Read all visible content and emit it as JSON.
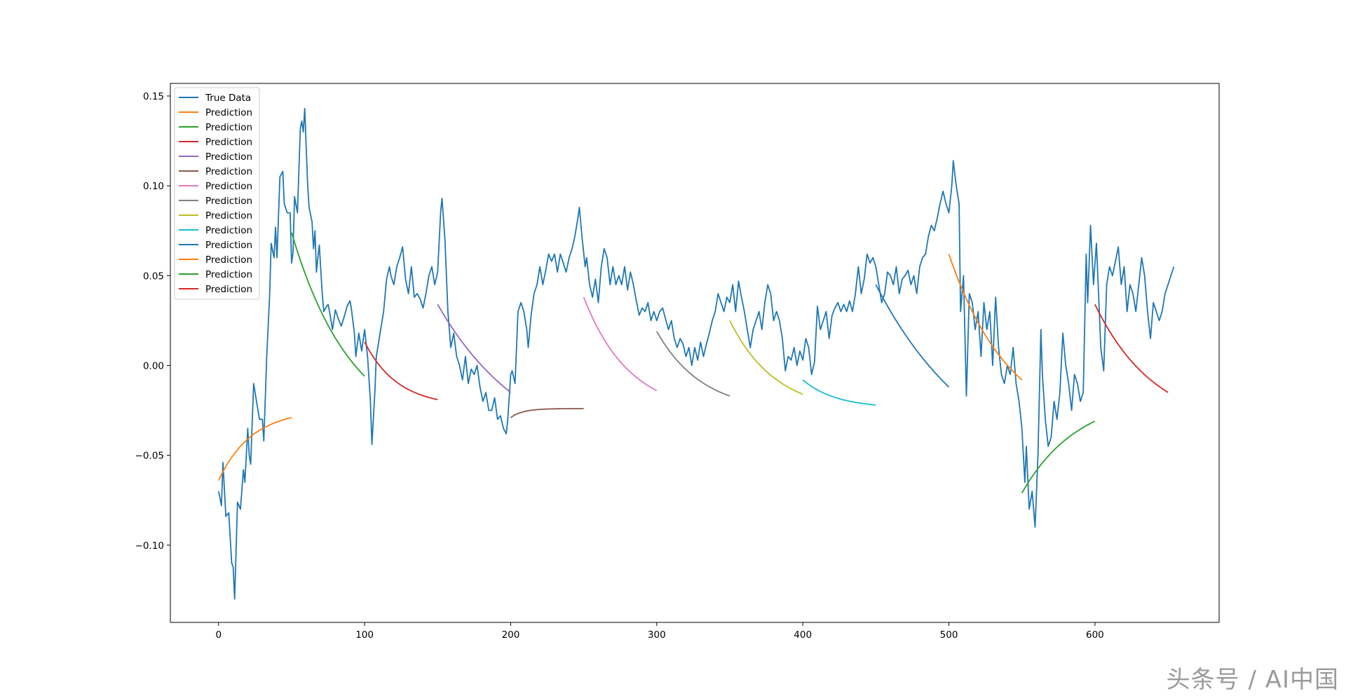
{
  "chart_data": {
    "type": "line",
    "xlim": [
      -33,
      685
    ],
    "ylim": [
      -0.143,
      0.157
    ],
    "x_ticks": [
      0,
      100,
      200,
      300,
      400,
      500,
      600
    ],
    "y_ticks": [
      -0.1,
      -0.05,
      0.0,
      0.05,
      0.1,
      0.15
    ],
    "y_tick_labels": [
      "−0.10",
      "−0.05",
      "0.00",
      "0.05",
      "0.10",
      "0.15"
    ],
    "legend_position": "upper-left",
    "grid": false,
    "true_data_anchors": [
      [
        0,
        -0.07
      ],
      [
        2,
        -0.078
      ],
      [
        3,
        -0.054
      ],
      [
        5,
        -0.084
      ],
      [
        7,
        -0.082
      ],
      [
        9,
        -0.11
      ],
      [
        10,
        -0.112
      ],
      [
        11,
        -0.13
      ],
      [
        13,
        -0.076
      ],
      [
        15,
        -0.08
      ],
      [
        17,
        -0.058
      ],
      [
        18,
        -0.065
      ],
      [
        20,
        -0.035
      ],
      [
        21,
        -0.05
      ],
      [
        22,
        -0.055
      ],
      [
        24,
        -0.01
      ],
      [
        26,
        -0.02
      ],
      [
        28,
        -0.03
      ],
      [
        30,
        -0.03
      ],
      [
        31,
        -0.042
      ],
      [
        33,
        0.005
      ],
      [
        35,
        0.04
      ],
      [
        36,
        0.068
      ],
      [
        38,
        0.06
      ],
      [
        39,
        0.077
      ],
      [
        40,
        0.06
      ],
      [
        42,
        0.105
      ],
      [
        44,
        0.108
      ],
      [
        45,
        0.09
      ],
      [
        47,
        0.085
      ],
      [
        49,
        0.085
      ],
      [
        50,
        0.057
      ],
      [
        51,
        0.063
      ],
      [
        52,
        0.094
      ],
      [
        54,
        0.085
      ],
      [
        56,
        0.132
      ],
      [
        57,
        0.136
      ],
      [
        58,
        0.13
      ],
      [
        59,
        0.143
      ],
      [
        61,
        0.1
      ],
      [
        62,
        0.088
      ],
      [
        64,
        0.08
      ],
      [
        65,
        0.065
      ],
      [
        66,
        0.075
      ],
      [
        67,
        0.052
      ],
      [
        68,
        0.06
      ],
      [
        69,
        0.067
      ],
      [
        70,
        0.053
      ],
      [
        71,
        0.04
      ],
      [
        72,
        0.03
      ],
      [
        74,
        0.033
      ],
      [
        75,
        0.034
      ],
      [
        76,
        0.03
      ],
      [
        78,
        0.02
      ],
      [
        80,
        0.031
      ],
      [
        82,
        0.026
      ],
      [
        84,
        0.022
      ],
      [
        86,
        0.027
      ],
      [
        88,
        0.033
      ],
      [
        90,
        0.036
      ],
      [
        91,
        0.031
      ],
      [
        93,
        0.018
      ],
      [
        94,
        0.005
      ],
      [
        96,
        0.018
      ],
      [
        98,
        0.008
      ],
      [
        100,
        0.02
      ],
      [
        102,
        0.005
      ],
      [
        104,
        -0.02
      ],
      [
        105,
        -0.044
      ],
      [
        107,
        -0.015
      ],
      [
        108,
        0.005
      ],
      [
        109,
        0.01
      ],
      [
        111,
        0.02
      ],
      [
        113,
        0.03
      ],
      [
        115,
        0.048
      ],
      [
        117,
        0.055
      ],
      [
        118,
        0.05
      ],
      [
        120,
        0.045
      ],
      [
        122,
        0.055
      ],
      [
        124,
        0.06
      ],
      [
        126,
        0.066
      ],
      [
        128,
        0.048
      ],
      [
        130,
        0.04
      ],
      [
        132,
        0.055
      ],
      [
        134,
        0.038
      ],
      [
        136,
        0.04
      ],
      [
        138,
        0.037
      ],
      [
        140,
        0.032
      ],
      [
        142,
        0.04
      ],
      [
        144,
        0.05
      ],
      [
        146,
        0.055
      ],
      [
        148,
        0.045
      ],
      [
        150,
        0.052
      ],
      [
        152,
        0.085
      ],
      [
        153,
        0.093
      ],
      [
        155,
        0.07
      ],
      [
        157,
        0.03
      ],
      [
        159,
        0.01
      ],
      [
        161,
        0.018
      ],
      [
        163,
        0.005
      ],
      [
        165,
        0.0
      ],
      [
        167,
        -0.008
      ],
      [
        169,
        0.005
      ],
      [
        171,
        -0.01
      ],
      [
        173,
        -0.002
      ],
      [
        175,
        -0.005
      ],
      [
        177,
        0.0
      ],
      [
        179,
        -0.012
      ],
      [
        181,
        -0.02
      ],
      [
        183,
        -0.015
      ],
      [
        185,
        -0.025
      ],
      [
        187,
        -0.025
      ],
      [
        189,
        -0.018
      ],
      [
        191,
        -0.03
      ],
      [
        193,
        -0.028
      ],
      [
        195,
        -0.035
      ],
      [
        197,
        -0.038
      ],
      [
        198,
        -0.03
      ],
      [
        200,
        -0.005
      ],
      [
        201,
        -0.003
      ],
      [
        203,
        -0.01
      ],
      [
        205,
        0.03
      ],
      [
        207,
        0.035
      ],
      [
        209,
        0.03
      ],
      [
        211,
        0.02
      ],
      [
        212,
        0.01
      ],
      [
        214,
        0.028
      ],
      [
        216,
        0.04
      ],
      [
        218,
        0.045
      ],
      [
        220,
        0.055
      ],
      [
        222,
        0.045
      ],
      [
        224,
        0.053
      ],
      [
        226,
        0.062
      ],
      [
        228,
        0.058
      ],
      [
        230,
        0.062
      ],
      [
        232,
        0.052
      ],
      [
        234,
        0.062
      ],
      [
        236,
        0.057
      ],
      [
        238,
        0.052
      ],
      [
        240,
        0.06
      ],
      [
        242,
        0.065
      ],
      [
        244,
        0.072
      ],
      [
        246,
        0.082
      ],
      [
        247,
        0.088
      ],
      [
        249,
        0.07
      ],
      [
        251,
        0.055
      ],
      [
        252,
        0.06
      ],
      [
        254,
        0.045
      ],
      [
        256,
        0.038
      ],
      [
        258,
        0.048
      ],
      [
        260,
        0.035
      ],
      [
        262,
        0.055
      ],
      [
        264,
        0.065
      ],
      [
        266,
        0.06
      ],
      [
        268,
        0.045
      ],
      [
        270,
        0.055
      ],
      [
        272,
        0.045
      ],
      [
        274,
        0.05
      ],
      [
        276,
        0.045
      ],
      [
        278,
        0.055
      ],
      [
        280,
        0.042
      ],
      [
        282,
        0.052
      ],
      [
        284,
        0.045
      ],
      [
        286,
        0.036
      ],
      [
        288,
        0.028
      ],
      [
        290,
        0.032
      ],
      [
        292,
        0.03
      ],
      [
        294,
        0.035
      ],
      [
        296,
        0.025
      ],
      [
        298,
        0.03
      ],
      [
        300,
        0.025
      ],
      [
        302,
        0.03
      ],
      [
        304,
        0.032
      ],
      [
        306,
        0.026
      ],
      [
        308,
        0.02
      ],
      [
        310,
        0.025
      ],
      [
        312,
        0.015
      ],
      [
        314,
        0.01
      ],
      [
        316,
        0.015
      ],
      [
        318,
        0.012
      ],
      [
        320,
        0.005
      ],
      [
        322,
        0.01
      ],
      [
        324,
        0.0
      ],
      [
        326,
        0.01
      ],
      [
        328,
        0.003
      ],
      [
        330,
        0.013
      ],
      [
        332,
        0.005
      ],
      [
        334,
        0.012
      ],
      [
        336,
        0.018
      ],
      [
        338,
        0.025
      ],
      [
        340,
        0.03
      ],
      [
        342,
        0.04
      ],
      [
        344,
        0.035
      ],
      [
        346,
        0.03
      ],
      [
        348,
        0.038
      ],
      [
        350,
        0.035
      ],
      [
        352,
        0.045
      ],
      [
        354,
        0.03
      ],
      [
        356,
        0.047
      ],
      [
        358,
        0.038
      ],
      [
        360,
        0.03
      ],
      [
        362,
        0.02
      ],
      [
        364,
        0.01
      ],
      [
        366,
        0.02
      ],
      [
        368,
        0.025
      ],
      [
        370,
        0.03
      ],
      [
        372,
        0.02
      ],
      [
        374,
        0.035
      ],
      [
        376,
        0.045
      ],
      [
        378,
        0.04
      ],
      [
        380,
        0.025
      ],
      [
        382,
        0.03
      ],
      [
        384,
        0.025
      ],
      [
        386,
        0.015
      ],
      [
        388,
        -0.003
      ],
      [
        390,
        0.005
      ],
      [
        392,
        0.003
      ],
      [
        394,
        0.01
      ],
      [
        396,
        0.0
      ],
      [
        398,
        0.008
      ],
      [
        400,
        0.003
      ],
      [
        402,
        0.015
      ],
      [
        404,
        0.01
      ],
      [
        406,
        -0.005
      ],
      [
        408,
        0.002
      ],
      [
        410,
        0.033
      ],
      [
        412,
        0.02
      ],
      [
        414,
        0.025
      ],
      [
        416,
        0.03
      ],
      [
        418,
        0.015
      ],
      [
        420,
        0.028
      ],
      [
        422,
        0.032
      ],
      [
        424,
        0.035
      ],
      [
        426,
        0.03
      ],
      [
        428,
        0.034
      ],
      [
        430,
        0.03
      ],
      [
        432,
        0.036
      ],
      [
        434,
        0.03
      ],
      [
        436,
        0.04
      ],
      [
        438,
        0.055
      ],
      [
        440,
        0.04
      ],
      [
        442,
        0.048
      ],
      [
        444,
        0.062
      ],
      [
        446,
        0.057
      ],
      [
        448,
        0.06
      ],
      [
        450,
        0.055
      ],
      [
        452,
        0.045
      ],
      [
        454,
        0.035
      ],
      [
        456,
        0.04
      ],
      [
        458,
        0.052
      ],
      [
        460,
        0.05
      ],
      [
        462,
        0.045
      ],
      [
        464,
        0.055
      ],
      [
        466,
        0.04
      ],
      [
        468,
        0.048
      ],
      [
        470,
        0.05
      ],
      [
        472,
        0.053
      ],
      [
        474,
        0.045
      ],
      [
        476,
        0.05
      ],
      [
        478,
        0.04
      ],
      [
        480,
        0.055
      ],
      [
        482,
        0.06
      ],
      [
        484,
        0.062
      ],
      [
        486,
        0.072
      ],
      [
        488,
        0.078
      ],
      [
        490,
        0.075
      ],
      [
        492,
        0.082
      ],
      [
        494,
        0.09
      ],
      [
        496,
        0.097
      ],
      [
        498,
        0.09
      ],
      [
        500,
        0.085
      ],
      [
        502,
        0.1
      ],
      [
        503,
        0.114
      ],
      [
        505,
        0.1
      ],
      [
        507,
        0.09
      ],
      [
        508,
        0.03
      ],
      [
        510,
        0.05
      ],
      [
        512,
        -0.017
      ],
      [
        514,
        0.04
      ],
      [
        516,
        0.035
      ],
      [
        518,
        0.02
      ],
      [
        520,
        0.03
      ],
      [
        522,
        0.005
      ],
      [
        524,
        0.035
      ],
      [
        526,
        0.02
      ],
      [
        528,
        0.03
      ],
      [
        530,
        0.0
      ],
      [
        532,
        0.038
      ],
      [
        534,
        0.01
      ],
      [
        536,
        -0.005
      ],
      [
        538,
        -0.01
      ],
      [
        540,
        0.0
      ],
      [
        542,
        -0.005
      ],
      [
        544,
        0.01
      ],
      [
        546,
        -0.01
      ],
      [
        548,
        -0.02
      ],
      [
        550,
        -0.035
      ],
      [
        552,
        -0.065
      ],
      [
        553,
        -0.045
      ],
      [
        555,
        -0.08
      ],
      [
        557,
        -0.07
      ],
      [
        559,
        -0.09
      ],
      [
        561,
        -0.05
      ],
      [
        563,
        0.02
      ],
      [
        564,
        -0.005
      ],
      [
        566,
        -0.03
      ],
      [
        568,
        -0.045
      ],
      [
        570,
        -0.04
      ],
      [
        572,
        -0.02
      ],
      [
        574,
        -0.03
      ],
      [
        576,
        -0.015
      ],
      [
        578,
        0.018
      ],
      [
        580,
        0.0
      ],
      [
        582,
        -0.01
      ],
      [
        584,
        -0.025
      ],
      [
        586,
        -0.005
      ],
      [
        588,
        -0.01
      ],
      [
        590,
        -0.02
      ],
      [
        592,
        -0.015
      ],
      [
        594,
        0.062
      ],
      [
        595,
        0.035
      ],
      [
        597,
        0.078
      ],
      [
        599,
        0.045
      ],
      [
        601,
        0.068
      ],
      [
        603,
        0.03
      ],
      [
        604,
        0.01
      ],
      [
        606,
        -0.003
      ],
      [
        608,
        0.045
      ],
      [
        610,
        0.055
      ],
      [
        612,
        0.05
      ],
      [
        614,
        0.058
      ],
      [
        616,
        0.066
      ],
      [
        618,
        0.045
      ],
      [
        620,
        0.055
      ],
      [
        622,
        0.03
      ],
      [
        624,
        0.045
      ],
      [
        626,
        0.04
      ],
      [
        628,
        0.03
      ],
      [
        630,
        0.045
      ],
      [
        632,
        0.06
      ],
      [
        634,
        0.05
      ],
      [
        636,
        0.03
      ],
      [
        638,
        0.015
      ],
      [
        640,
        0.035
      ],
      [
        642,
        0.03
      ],
      [
        644,
        0.025
      ],
      [
        646,
        0.03
      ],
      [
        648,
        0.04
      ],
      [
        650,
        0.045
      ],
      [
        652,
        0.05
      ],
      [
        654,
        0.055
      ]
    ],
    "series": [
      {
        "name": "True Data",
        "color": "#1f77b4",
        "kind": "true"
      },
      {
        "name": "Prediction",
        "color": "#ff7f0e",
        "kind": "pred",
        "x0": 0,
        "x1": 50,
        "y0": -0.064,
        "y1": -0.029,
        "k": 2.2
      },
      {
        "name": "Prediction",
        "color": "#2ca02c",
        "kind": "pred",
        "x0": 50,
        "x1": 100,
        "y0": 0.074,
        "y1": -0.006,
        "k": 1.2
      },
      {
        "name": "Prediction",
        "color": "#d62728",
        "kind": "pred",
        "x0": 100,
        "x1": 150,
        "y0": 0.013,
        "y1": -0.019,
        "k": 2.2
      },
      {
        "name": "Prediction",
        "color": "#9467bd",
        "kind": "pred",
        "x0": 150,
        "x1": 200,
        "y0": 0.034,
        "y1": -0.015,
        "k": 0.8
      },
      {
        "name": "Prediction",
        "color": "#8c564b",
        "kind": "pred",
        "x0": 200,
        "x1": 250,
        "y0": -0.029,
        "y1": -0.024,
        "k": 6.0
      },
      {
        "name": "Prediction",
        "color": "#e377c2",
        "kind": "pred",
        "x0": 250,
        "x1": 300,
        "y0": 0.038,
        "y1": -0.014,
        "k": 1.6
      },
      {
        "name": "Prediction",
        "color": "#7f7f7f",
        "kind": "pred",
        "x0": 300,
        "x1": 350,
        "y0": 0.019,
        "y1": -0.017,
        "k": 1.6
      },
      {
        "name": "Prediction",
        "color": "#bcbd22",
        "kind": "pred",
        "x0": 350,
        "x1": 400,
        "y0": 0.025,
        "y1": -0.016,
        "k": 1.6
      },
      {
        "name": "Prediction",
        "color": "#17becf",
        "kind": "pred",
        "x0": 400,
        "x1": 450,
        "y0": -0.008,
        "y1": -0.022,
        "k": 2.2
      },
      {
        "name": "Prediction",
        "color": "#1f77b4",
        "kind": "pred",
        "x0": 450,
        "x1": 500,
        "y0": 0.045,
        "y1": -0.012,
        "k": 0.7
      },
      {
        "name": "Prediction",
        "color": "#ff7f0e",
        "kind": "pred",
        "x0": 500,
        "x1": 550,
        "y0": 0.062,
        "y1": -0.008,
        "k": 1.2
      },
      {
        "name": "Prediction",
        "color": "#2ca02c",
        "kind": "pred",
        "x0": 550,
        "x1": 600,
        "y0": -0.071,
        "y1": -0.031,
        "k": 1.3
      },
      {
        "name": "Prediction",
        "color": "#d62728",
        "kind": "pred",
        "x0": 600,
        "x1": 650,
        "y0": 0.034,
        "y1": -0.015,
        "k": 1.2
      }
    ]
  },
  "watermark": "头条号 / AI中国"
}
